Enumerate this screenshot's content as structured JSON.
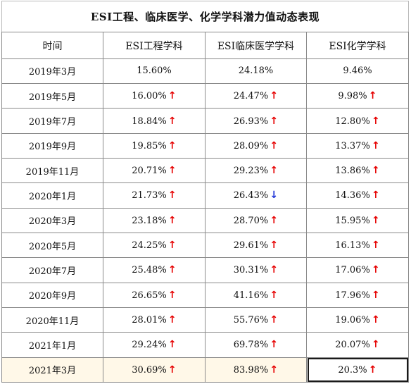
{
  "title": "ESI工程、临床医学、化学学科潜力值动态表现",
  "headers": [
    "时间",
    "ESI工程学科",
    "ESI临床医学学科",
    "ESI化学学科"
  ],
  "colors": {
    "up": "#e60000",
    "down": "#1a2fd6"
  },
  "rows": [
    {
      "time": "2019年3月",
      "cells": [
        {
          "v": "15.60%",
          "t": ""
        },
        {
          "v": "24.18%",
          "t": ""
        },
        {
          "v": "9.46%",
          "t": ""
        }
      ]
    },
    {
      "time": "2019年5月",
      "cells": [
        {
          "v": "16.00%",
          "t": "up"
        },
        {
          "v": "24.47%",
          "t": "up"
        },
        {
          "v": "9.98%",
          "t": "up"
        }
      ]
    },
    {
      "time": "2019年7月",
      "cells": [
        {
          "v": "18.84%",
          "t": "up"
        },
        {
          "v": "26.93%",
          "t": "up"
        },
        {
          "v": "12.80%",
          "t": "up"
        }
      ]
    },
    {
      "time": "2019年9月",
      "cells": [
        {
          "v": "19.85%",
          "t": "up"
        },
        {
          "v": "28.09%",
          "t": "up"
        },
        {
          "v": "13.37%",
          "t": "up"
        }
      ]
    },
    {
      "time": "2019年11月",
      "cells": [
        {
          "v": "20.71%",
          "t": "up"
        },
        {
          "v": "29.23%",
          "t": "up"
        },
        {
          "v": "13.86%",
          "t": "up"
        }
      ]
    },
    {
      "time": "2020年1月",
      "cells": [
        {
          "v": "21.73%",
          "t": "up"
        },
        {
          "v": "26.43%",
          "t": "down"
        },
        {
          "v": "14.36%",
          "t": "up"
        }
      ]
    },
    {
      "time": "2020年3月",
      "cells": [
        {
          "v": "23.18%",
          "t": "up"
        },
        {
          "v": "28.70%",
          "t": "up"
        },
        {
          "v": "15.95%",
          "t": "up"
        }
      ]
    },
    {
      "time": "2020年5月",
      "cells": [
        {
          "v": "24.25%",
          "t": "up"
        },
        {
          "v": "29.61%",
          "t": "up"
        },
        {
          "v": "16.13%",
          "t": "up"
        }
      ]
    },
    {
      "time": "2020年7月",
      "cells": [
        {
          "v": "25.48%",
          "t": "up"
        },
        {
          "v": "30.31%",
          "t": "up"
        },
        {
          "v": "17.06%",
          "t": "up"
        }
      ]
    },
    {
      "time": "2020年9月",
      "cells": [
        {
          "v": "26.65%",
          "t": "up"
        },
        {
          "v": "41.16%",
          "t": "up"
        },
        {
          "v": "17.96%",
          "t": "up"
        }
      ]
    },
    {
      "time": "2020年11月",
      "cells": [
        {
          "v": "28.01%",
          "t": "up"
        },
        {
          "v": "55.76%",
          "t": "up"
        },
        {
          "v": "19.06%",
          "t": "up"
        }
      ]
    },
    {
      "time": "2021年1月",
      "cells": [
        {
          "v": "29.24%",
          "t": "up"
        },
        {
          "v": "69.78%",
          "t": "up"
        },
        {
          "v": "20.07%",
          "t": "up"
        }
      ]
    },
    {
      "time": "2021年3月",
      "cells": [
        {
          "v": "30.69%",
          "t": "up"
        },
        {
          "v": "83.98%",
          "t": "up"
        },
        {
          "v": "20.3%",
          "t": "up"
        }
      ]
    }
  ]
}
